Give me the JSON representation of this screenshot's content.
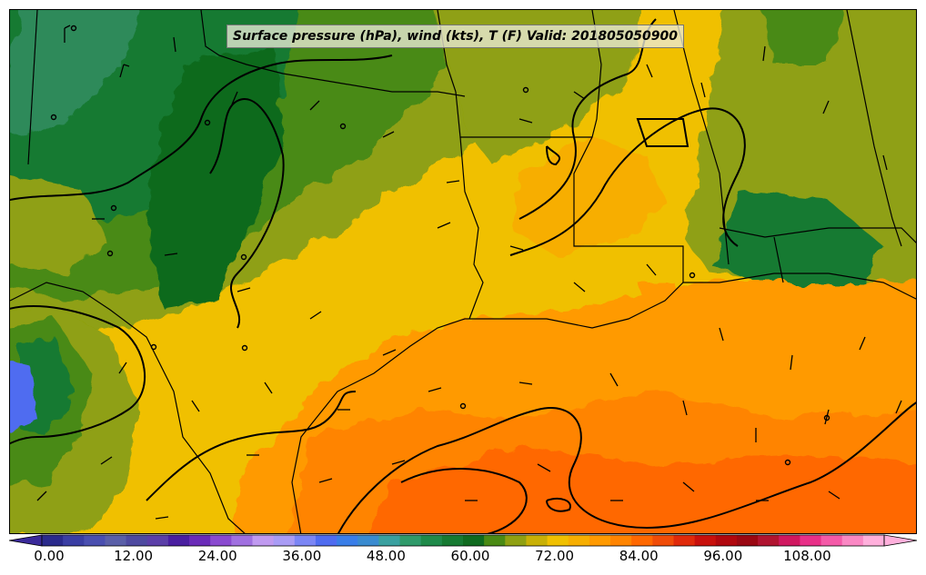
{
  "title": "Surface pressure (hPa), wind (kts), T (F) Valid: 201805050900",
  "colorbar": {
    "ticks": [
      "0.00",
      "12.00",
      "24.00",
      "36.00",
      "48.00",
      "60.00",
      "72.00",
      "84.00",
      "96.00",
      "108.00"
    ],
    "colors": [
      "#2a2a8c",
      "#3a3ea3",
      "#4a4fb0",
      "#5a5fa8",
      "#4e4aa0",
      "#5b3fa8",
      "#4a1fa0",
      "#6a2bb8",
      "#8a4ad0",
      "#a070e0",
      "#c09af0",
      "#a99cf5",
      "#7b86f5",
      "#4f6cf0",
      "#3a7ee8",
      "#3a8bd0",
      "#3aa0a0",
      "#2f9a6a",
      "#1f8a4a",
      "#167a32",
      "#0f6a1f",
      "#4a8a14",
      "#8fa012",
      "#c8b006",
      "#f0c000",
      "#f7ae00",
      "#ff9a00",
      "#ff8400",
      "#ff6800",
      "#f04c08",
      "#e02a0a",
      "#c8100c",
      "#b0080e",
      "#9a0812",
      "#b01430",
      "#d01860",
      "#e83088",
      "#f45aa8",
      "#fa88c4",
      "#ffb0dc"
    ]
  }
}
